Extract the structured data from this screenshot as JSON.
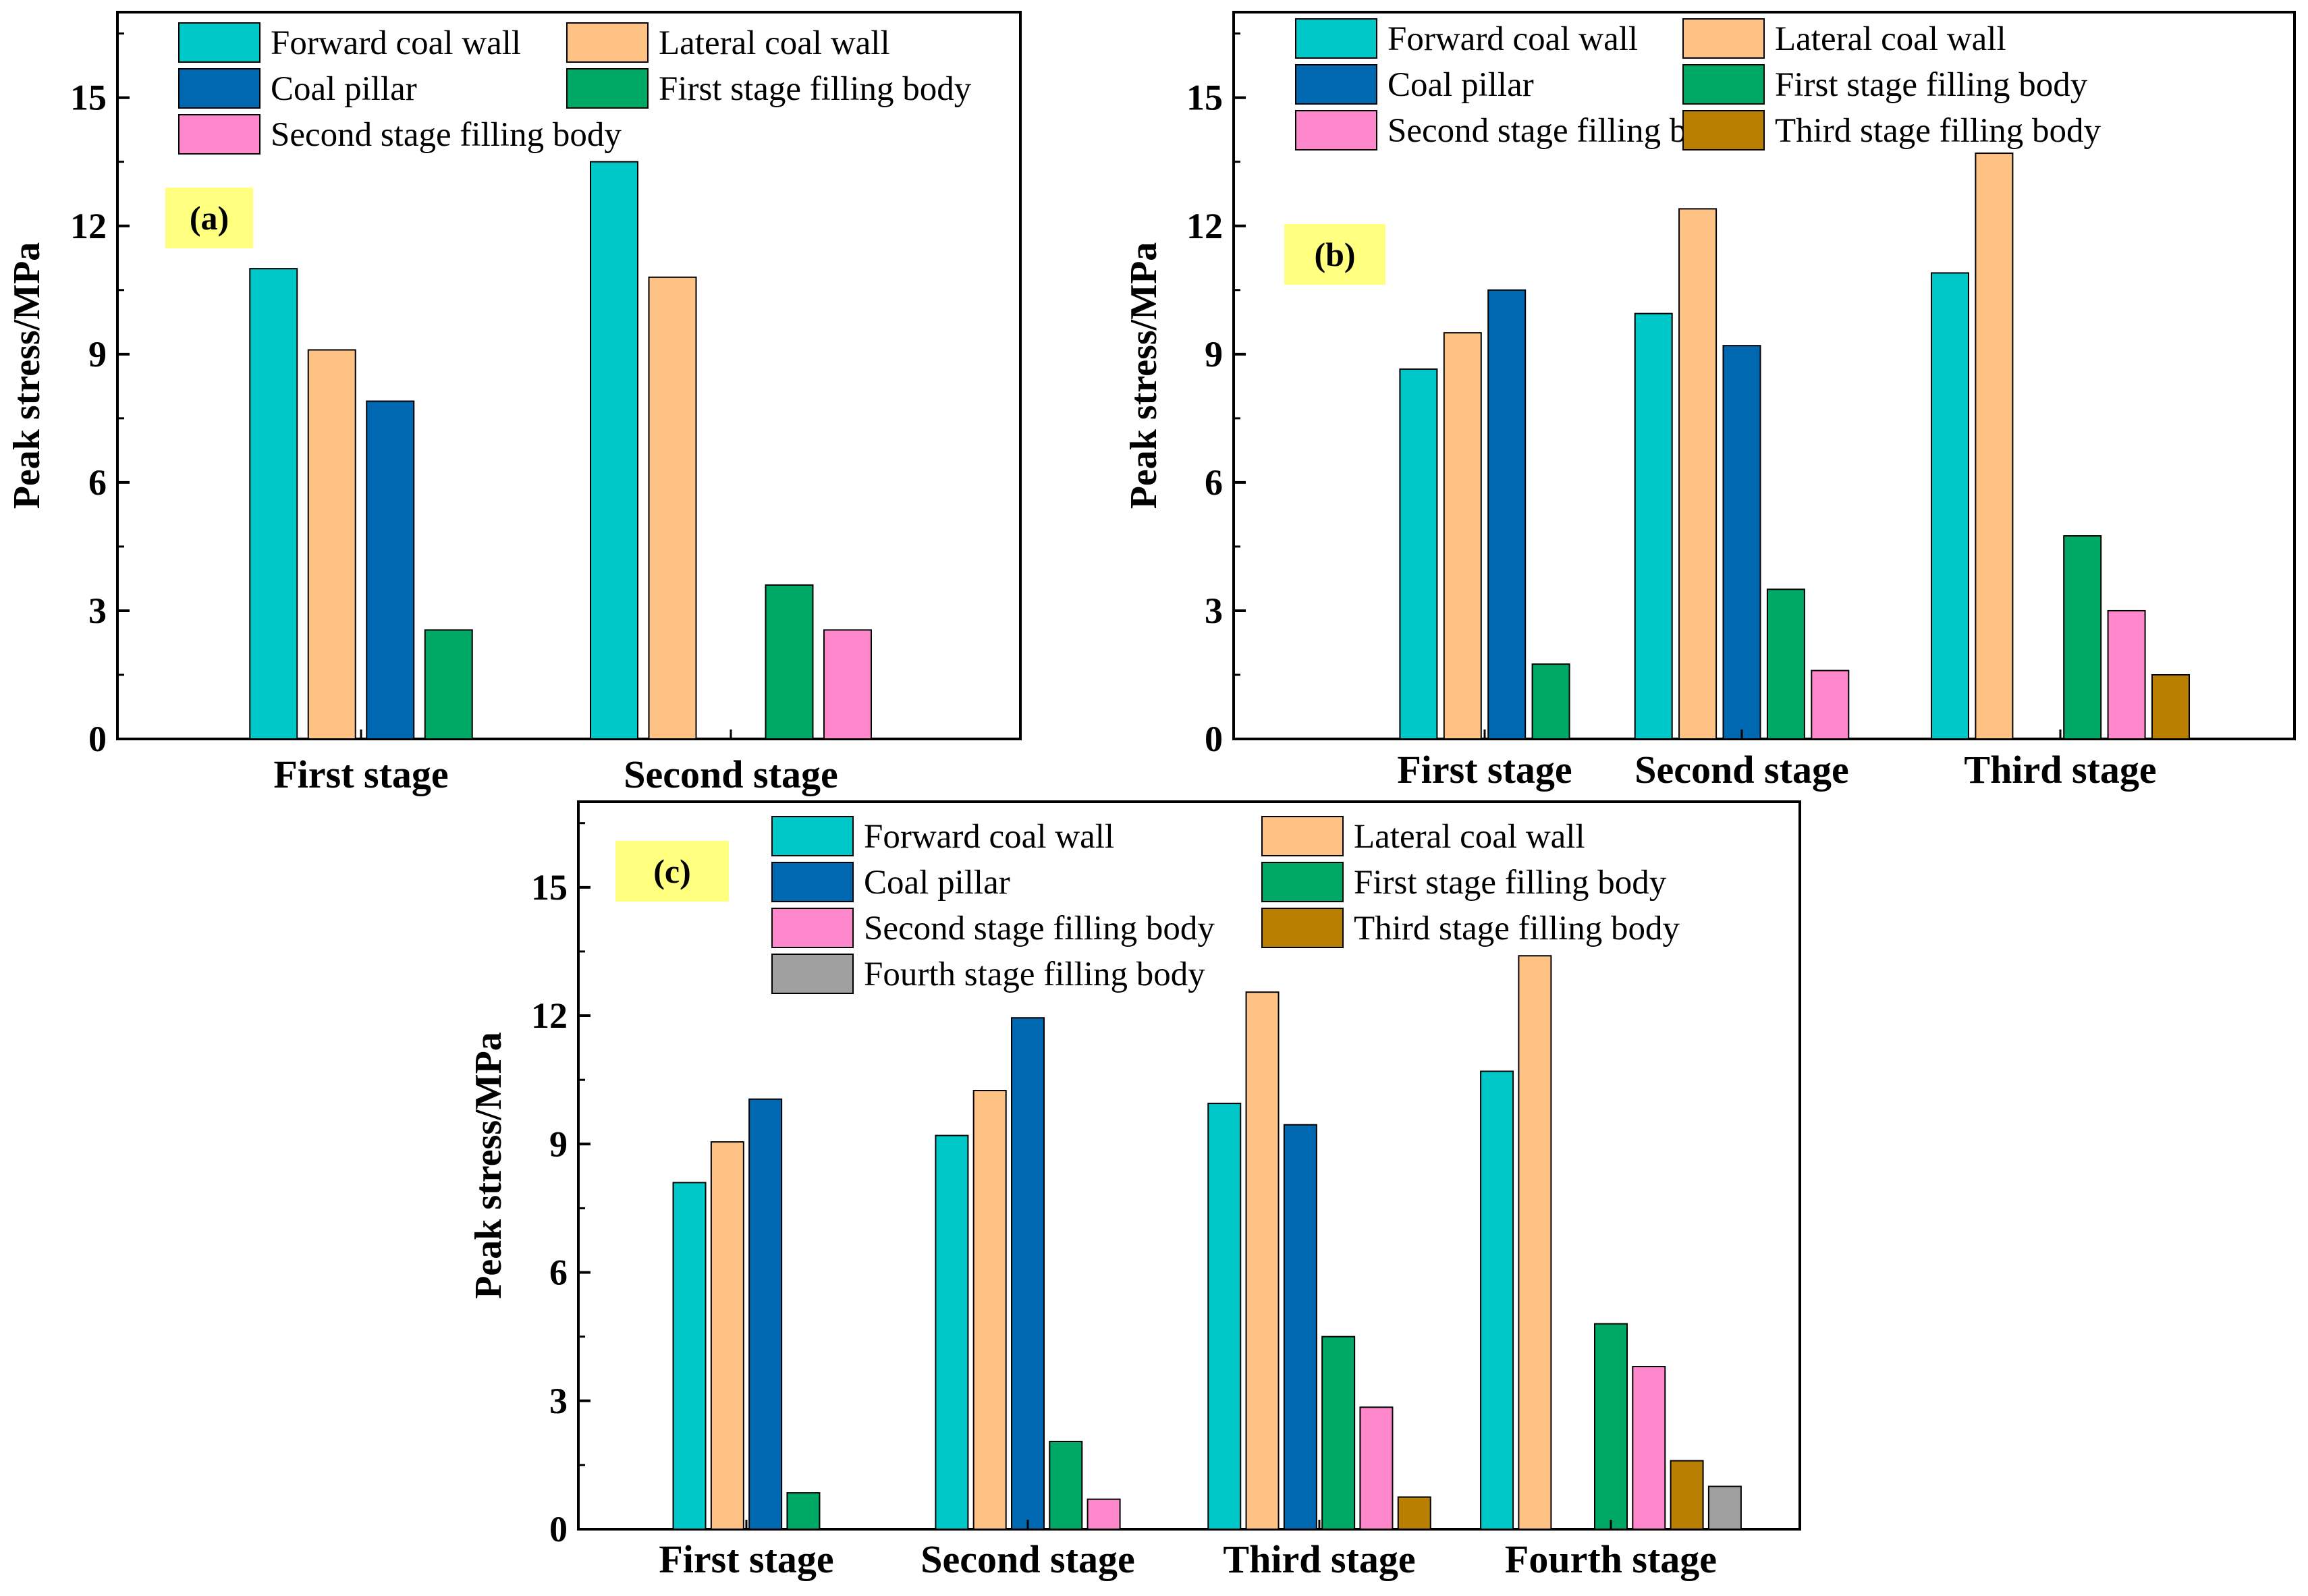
{
  "series_colors": {
    "Forward coal wall": "#00C8C8",
    "Lateral coal wall": "#FFC285",
    "Coal pillar": "#0067B1",
    "First stage filling body": "#00A866",
    "Second stage filling body": "#FF88CC",
    "Third stage filling body": "#B87F00",
    "Fourth stage filling body": "#A0A0A0"
  },
  "label_box_color": "#FFFF80",
  "chart_data": [
    {
      "type": "bar",
      "panel_label": "(a)",
      "ylabel": "Peak stress/MPa",
      "ylim": [
        0,
        17
      ],
      "yticks": [
        "0",
        "3",
        "6",
        "9",
        "12",
        "15"
      ],
      "categories": [
        "First stage",
        "Second stage"
      ],
      "legend": [
        "Forward coal wall",
        "Lateral coal wall",
        "Coal pillar",
        "First stage filling body",
        "Second stage filling body"
      ],
      "series": [
        {
          "name": "Forward coal wall",
          "values": [
            11.0,
            13.5
          ]
        },
        {
          "name": "Lateral coal wall",
          "values": [
            9.1,
            10.8
          ]
        },
        {
          "name": "Coal pillar",
          "values": [
            7.9,
            null
          ]
        },
        {
          "name": "First stage filling body",
          "values": [
            2.55,
            3.6
          ]
        },
        {
          "name": "Second stage filling body",
          "values": [
            null,
            2.55
          ]
        }
      ]
    },
    {
      "type": "bar",
      "panel_label": "(b)",
      "ylabel": "Peak stress/MPa",
      "ylim": [
        0,
        17
      ],
      "yticks": [
        "0",
        "3",
        "6",
        "9",
        "12",
        "15"
      ],
      "categories": [
        "First stage",
        "Second stage",
        "Third stage"
      ],
      "legend": [
        "Forward coal wall",
        "Lateral coal wall",
        "Coal pillar",
        "First stage filling body",
        "Second stage filling body",
        "Third stage filling body"
      ],
      "series": [
        {
          "name": "Forward coal wall",
          "values": [
            8.65,
            9.95,
            10.9
          ]
        },
        {
          "name": "Lateral coal wall",
          "values": [
            9.5,
            12.4,
            13.7
          ]
        },
        {
          "name": "Coal pillar",
          "values": [
            10.5,
            9.2,
            null
          ]
        },
        {
          "name": "First stage filling body",
          "values": [
            1.75,
            3.5,
            4.75
          ]
        },
        {
          "name": "Second stage filling body",
          "values": [
            null,
            1.6,
            3.0
          ]
        },
        {
          "name": "Third stage filling body",
          "values": [
            null,
            null,
            1.5
          ]
        }
      ]
    },
    {
      "type": "bar",
      "panel_label": "(c)",
      "ylabel": "Peak stress/MPa",
      "ylim": [
        0,
        17
      ],
      "yticks": [
        "0",
        "3",
        "6",
        "9",
        "12",
        "15"
      ],
      "categories": [
        "First stage",
        "Second stage",
        "Third stage",
        "Fourth stage"
      ],
      "legend": [
        "Forward coal wall",
        "Lateral coal wall",
        "Coal pillar",
        "First stage filling body",
        "Second stage filling body",
        "Third stage filling body",
        "Fourth stage filling body"
      ],
      "series": [
        {
          "name": "Forward coal wall",
          "values": [
            8.1,
            9.2,
            9.95,
            10.7
          ]
        },
        {
          "name": "Lateral coal wall",
          "values": [
            9.05,
            10.25,
            12.55,
            13.4
          ]
        },
        {
          "name": "Coal pillar",
          "values": [
            10.05,
            11.95,
            9.45,
            null
          ]
        },
        {
          "name": "First stage filling body",
          "values": [
            0.85,
            2.05,
            4.5,
            4.8
          ]
        },
        {
          "name": "Second stage filling body",
          "values": [
            null,
            0.7,
            2.85,
            3.8
          ]
        },
        {
          "name": "Third stage filling body",
          "values": [
            null,
            null,
            0.75,
            1.6
          ]
        },
        {
          "name": "Fourth stage filling body",
          "values": [
            null,
            null,
            null,
            1.0
          ]
        }
      ]
    }
  ]
}
